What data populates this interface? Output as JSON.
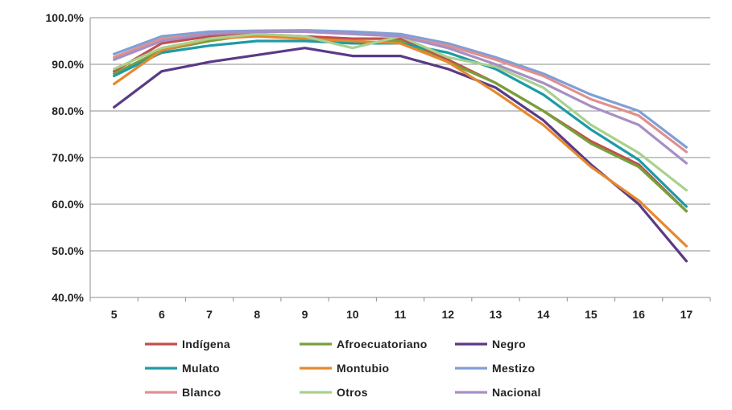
{
  "chart_data": {
    "type": "line",
    "title": "",
    "xlabel": "",
    "ylabel": "",
    "x": [
      5,
      6,
      7,
      8,
      9,
      10,
      11,
      12,
      13,
      14,
      15,
      16,
      17
    ],
    "ylim": [
      40,
      100
    ],
    "yticks": [
      "40.0%",
      "50.0%",
      "60.0%",
      "70.0%",
      "80.0%",
      "90.0%",
      "100.0%"
    ],
    "grid": "horizontal",
    "legend_position": "bottom",
    "series": [
      {
        "name": "Indígena",
        "color": "#c0504d",
        "values": [
          88.5,
          94.5,
          96.0,
          96.5,
          96.0,
          95.5,
          95.5,
          91.0,
          86.0,
          80.0,
          73.5,
          68.5,
          58.5
        ]
      },
      {
        "name": "Afroecuatoriano",
        "color": "#77a03b",
        "values": [
          88.0,
          93.0,
          95.0,
          96.5,
          95.5,
          94.5,
          95.0,
          90.5,
          86.0,
          80.0,
          73.0,
          68.0,
          58.5
        ]
      },
      {
        "name": "Negro",
        "color": "#5a3a86",
        "values": [
          80.8,
          88.5,
          90.5,
          92.0,
          93.5,
          91.8,
          91.8,
          89.0,
          85.0,
          78.0,
          68.5,
          60.0,
          47.8
        ]
      },
      {
        "name": "Mulato",
        "color": "#1e9aa6",
        "values": [
          87.5,
          92.5,
          94.0,
          95.0,
          95.0,
          94.5,
          94.5,
          92.5,
          89.0,
          83.5,
          76.0,
          69.5,
          59.5
        ]
      },
      {
        "name": "Montubio",
        "color": "#e5892f",
        "values": [
          85.8,
          93.0,
          95.5,
          96.0,
          95.5,
          95.0,
          94.5,
          90.5,
          84.0,
          77.0,
          68.0,
          60.8,
          51.0
        ]
      },
      {
        "name": "Mestizo",
        "color": "#7f9fd6",
        "values": [
          92.2,
          96.0,
          97.0,
          97.2,
          97.3,
          97.0,
          96.5,
          94.5,
          91.5,
          88.0,
          83.5,
          80.0,
          72.2
        ]
      },
      {
        "name": "Blanco",
        "color": "#e0908e",
        "values": [
          91.5,
          95.5,
          96.5,
          97.0,
          97.0,
          96.5,
          96.0,
          94.0,
          91.0,
          87.5,
          82.5,
          79.0,
          71.2
        ]
      },
      {
        "name": "Otros",
        "color": "#a9d18e",
        "values": [
          89.0,
          93.5,
          95.5,
          96.5,
          96.0,
          93.5,
          96.0,
          91.5,
          89.5,
          85.0,
          77.0,
          71.0,
          63.0
        ]
      },
      {
        "name": "Nacional",
        "color": "#a78fc5",
        "values": [
          91.0,
          95.0,
          96.5,
          97.0,
          97.0,
          96.5,
          96.0,
          93.5,
          90.0,
          86.0,
          81.0,
          77.0,
          68.8
        ]
      }
    ]
  }
}
